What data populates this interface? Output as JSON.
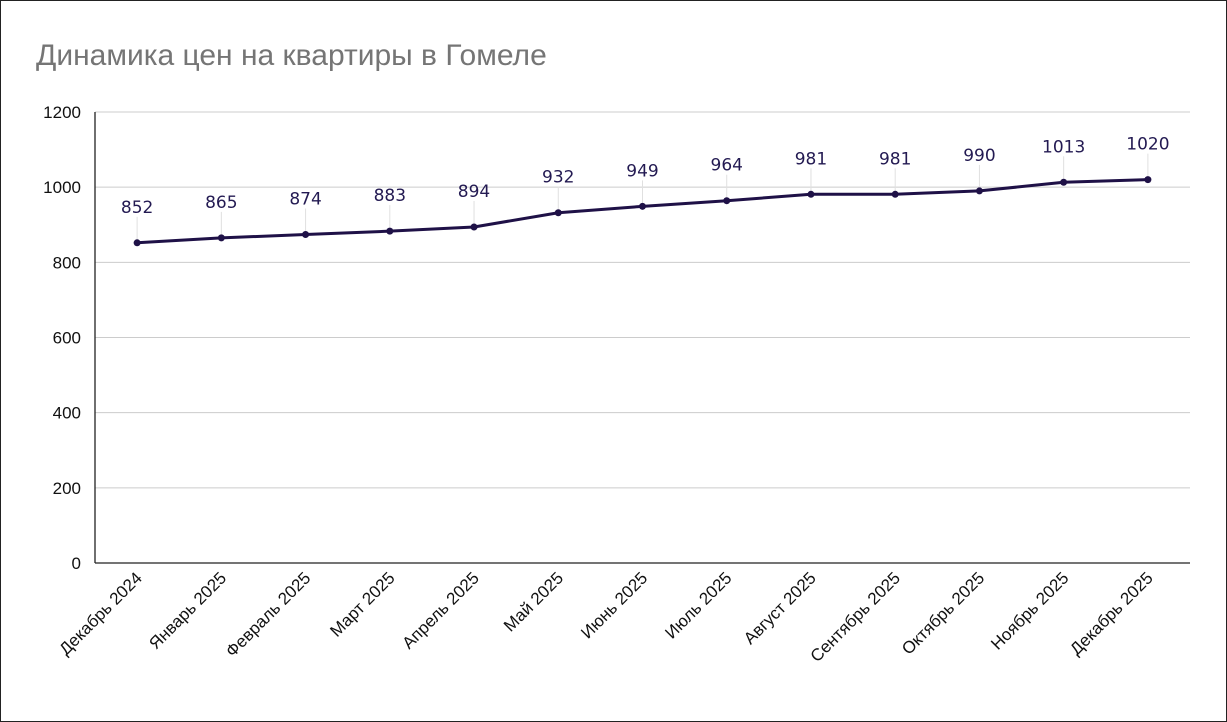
{
  "chart_data": {
    "type": "line",
    "title": "Динамика цен на квартиры в Гомеле",
    "xlabel": "",
    "ylabel": "",
    "categories": [
      "Декабрь 2024",
      "Январь 2025",
      "Февраль 2025",
      "Март 2025",
      "Апрель 2025",
      "Май 2025",
      "Июнь 2025",
      "Июль 2025",
      "Август 2025",
      "Сентябрь 2025",
      "Октябрь 2025",
      "Ноябрь 2025",
      "Декабрь 2025"
    ],
    "series": [
      {
        "values": [
          852,
          865,
          874,
          883,
          894,
          932,
          949,
          964,
          981,
          981,
          990,
          1013,
          1020
        ],
        "color": "#1f1147"
      }
    ],
    "ylim": [
      0,
      1200
    ],
    "yticks": [
      0,
      200,
      400,
      600,
      800,
      1000,
      1200
    ],
    "grid": true,
    "legend": "none",
    "data_labels": true
  }
}
